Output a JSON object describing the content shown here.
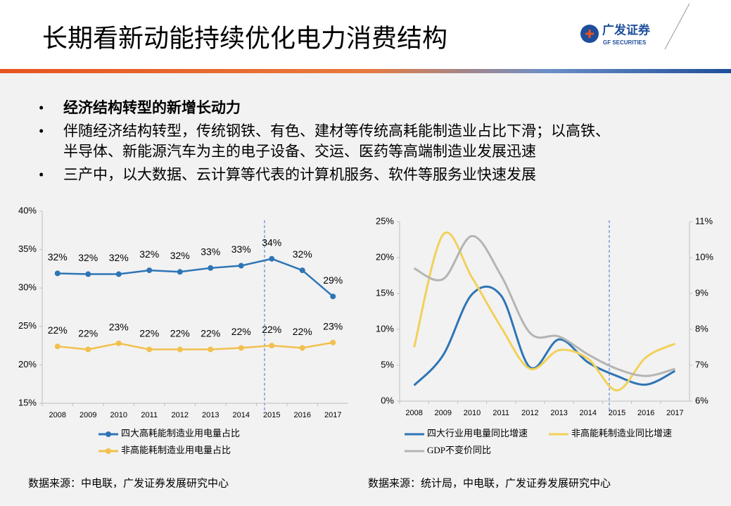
{
  "header": {
    "title": "长期看新动能持续优化电力消费结构",
    "logo": "广发证券",
    "logo_en": "GF SECURITIES"
  },
  "bullets": [
    "经济结构转型的新增长动力",
    "伴随经济结构转型，传统钢铁、有色、建材等传统高耗能制造业占比下滑；以高铁、",
    "半导体、新能源汽车为主的电子设备、交运、医药等高端制造业发展迅速",
    "三产中，以大数据、云计算等代表的计算机服务、软件等服务业快速发展"
  ],
  "sources": [
    "数据来源：中电联，广发证券发展研究中心",
    "数据来源：统计局，中电联，广发证券发展研究中心"
  ],
  "chart_data": [
    {
      "type": "line",
      "markers": true,
      "smooth": false,
      "categories": [
        "2008",
        "2009",
        "2010",
        "2011",
        "2012",
        "2013",
        "2014",
        "2015",
        "2016",
        "2017"
      ],
      "ylim": [
        15,
        40
      ],
      "yticks": [
        {
          "value": 15,
          "label": "15%"
        },
        {
          "value": 20,
          "label": "20%"
        },
        {
          "value": 25,
          "label": "25%"
        },
        {
          "value": 30,
          "label": "30%"
        },
        {
          "value": 35,
          "label": "35%"
        },
        {
          "value": 40,
          "label": "40%"
        }
      ],
      "series": [
        {
          "name": "四大高耗能制造业用电量占比",
          "color": "#2e75b6",
          "values": [
            31.9,
            31.8,
            31.8,
            32.3,
            32.1,
            32.6,
            32.9,
            33.8,
            32.3,
            28.9
          ],
          "value_labels": [
            "32%",
            "32%",
            "32%",
            "32%",
            "32%",
            "33%",
            "33%",
            "34%",
            "32%",
            "29%"
          ]
        },
        {
          "name": "非高能耗制造业用电量占比",
          "color": "#f2c04d",
          "values": [
            22.4,
            22.0,
            22.8,
            22.0,
            22.0,
            22.0,
            22.2,
            22.5,
            22.2,
            22.9
          ],
          "value_labels": [
            "22%",
            "22%",
            "23%",
            "22%",
            "22%",
            "22%",
            "22%",
            "22%",
            "22%",
            "23%"
          ]
        }
      ]
    },
    {
      "type": "line",
      "markers": false,
      "smooth": true,
      "categories": [
        "2008",
        "2009",
        "2010",
        "2011",
        "2012",
        "2013",
        "2014",
        "2015",
        "2016",
        "2017"
      ],
      "ylim": [
        0,
        25
      ],
      "yticks": [
        {
          "value": 0,
          "label": "0%"
        },
        {
          "value": 5,
          "label": "5%"
        },
        {
          "value": 10,
          "label": "10%"
        },
        {
          "value": 15,
          "label": "15%"
        },
        {
          "value": 20,
          "label": "20%"
        },
        {
          "value": 25,
          "label": "25%"
        }
      ],
      "y2lim": [
        6,
        11
      ],
      "y2ticks": [
        {
          "value": 6,
          "label": "6%"
        },
        {
          "value": 7,
          "label": "7%"
        },
        {
          "value": 8,
          "label": "8%"
        },
        {
          "value": 9,
          "label": "9%"
        },
        {
          "value": 10,
          "label": "10%"
        },
        {
          "value": 11,
          "label": "11%"
        }
      ],
      "series": [
        {
          "name": "四大行业用电量同比增速",
          "color": "#2e75b6",
          "values": [
            2.2,
            6.4,
            14.9,
            14.7,
            4.7,
            8.6,
            5.4,
            3.5,
            2.3,
            4.2
          ]
        },
        {
          "name": "非高能耗制造业同比增速",
          "color": "#f2d15a",
          "values": [
            7.5,
            23.2,
            17.2,
            10.3,
            4.5,
            7.1,
            5.9,
            1.5,
            6.1,
            8.0
          ]
        },
        {
          "name": "GDP不变价同比",
          "color": "#b4b4b4",
          "axis": "y2",
          "values": [
            9.7,
            9.4,
            10.6,
            9.5,
            7.9,
            7.8,
            7.3,
            6.9,
            6.7,
            6.9
          ]
        }
      ]
    }
  ]
}
